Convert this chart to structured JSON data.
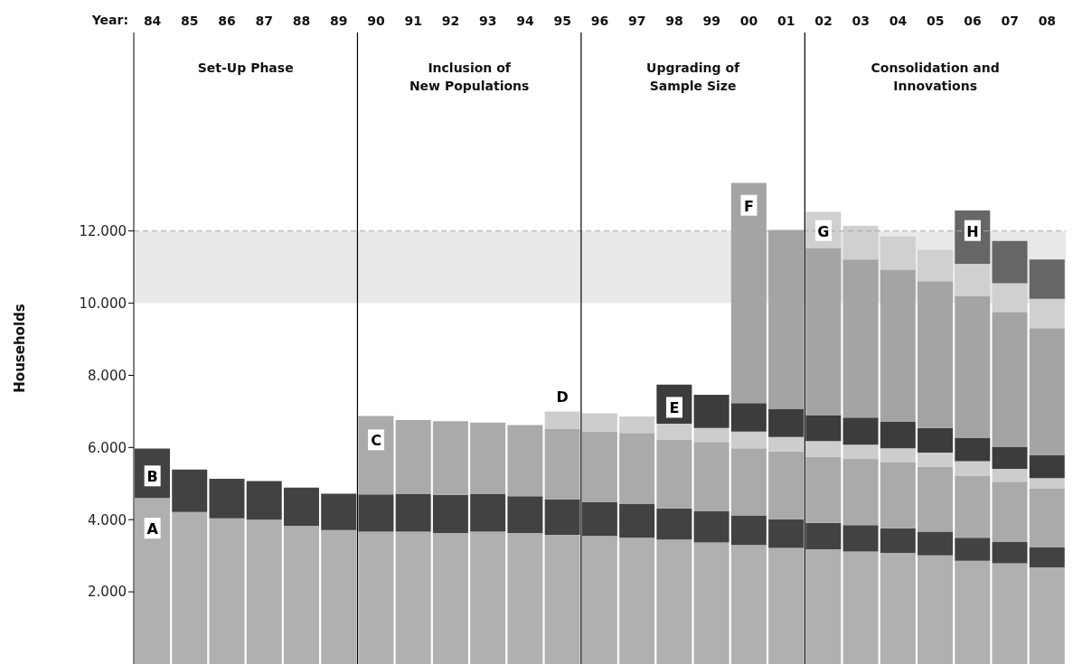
{
  "chart_data": {
    "type": "bar",
    "stacked": true,
    "xlabel": "Year:",
    "ylabel": "Households",
    "x": [
      1984,
      1985,
      1986,
      1987,
      1988,
      1989,
      1990,
      1991,
      1992,
      1993,
      1994,
      1995,
      1996,
      1997,
      1998,
      1999,
      2000,
      2001,
      2002,
      2003,
      2004,
      2005,
      2006,
      2007,
      2008
    ],
    "xlim": [
      1983.5,
      2008.5
    ],
    "xticks": [
      {
        "value": 1984,
        "label": "84"
      },
      {
        "value": 1985,
        "label": "85"
      },
      {
        "value": 1986,
        "label": "86"
      },
      {
        "value": 1987,
        "label": "87"
      },
      {
        "value": 1988,
        "label": "88"
      },
      {
        "value": 1989,
        "label": "89"
      },
      {
        "value": 1990,
        "label": "90"
      },
      {
        "value": 1991,
        "label": "91"
      },
      {
        "value": 1992,
        "label": "92"
      },
      {
        "value": 1993,
        "label": "93"
      },
      {
        "value": 1994,
        "label": "94"
      },
      {
        "value": 1995,
        "label": "95"
      },
      {
        "value": 1996,
        "label": "96"
      },
      {
        "value": 1997,
        "label": "97"
      },
      {
        "value": 1998,
        "label": "98"
      },
      {
        "value": 1999,
        "label": "99"
      },
      {
        "value": 2000,
        "label": "00"
      },
      {
        "value": 2001,
        "label": "01"
      },
      {
        "value": 2002,
        "label": "02"
      },
      {
        "value": 2003,
        "label": "03"
      },
      {
        "value": 2004,
        "label": "04"
      },
      {
        "value": 2005,
        "label": "05"
      },
      {
        "value": 2006,
        "label": "06"
      },
      {
        "value": 2007,
        "label": "07"
      },
      {
        "value": 2008,
        "label": "08"
      }
    ],
    "series": [
      {
        "color": "#b0b0b0",
        "values": [
          4600,
          4210,
          4040,
          4000,
          3830,
          3710,
          3670,
          3670,
          3630,
          3670,
          3630,
          3580,
          3550,
          3500,
          3450,
          3370,
          3300,
          3220,
          3180,
          3120,
          3080,
          3010,
          2860,
          2790,
          2680
        ]
      },
      {
        "color": "#424242",
        "values": [
          1370,
          1180,
          1090,
          1070,
          1060,
          1010,
          1030,
          1050,
          1060,
          1050,
          1020,
          980,
          930,
          930,
          860,
          860,
          820,
          790,
          730,
          730,
          680,
          660,
          640,
          590,
          550
        ]
      },
      {
        "color": "#aaaaaa",
        "values": [
          null,
          null,
          null,
          null,
          null,
          null,
          2170,
          2040,
          2040,
          1970,
          1970,
          1950,
          1960,
          1970,
          1910,
          1920,
          1860,
          1880,
          1830,
          1830,
          1820,
          1800,
          1720,
          1670,
          1630
        ]
      },
      {
        "color": "#cdcdcd",
        "values": [
          null,
          null,
          null,
          null,
          null,
          null,
          null,
          null,
          null,
          null,
          null,
          490,
          510,
          460,
          440,
          390,
          460,
          400,
          440,
          400,
          400,
          390,
          400,
          360,
          290
        ]
      },
      {
        "color": "#3c3c3c",
        "values": [
          null,
          null,
          null,
          null,
          null,
          null,
          null,
          null,
          null,
          null,
          null,
          null,
          null,
          null,
          1080,
          920,
          790,
          780,
          720,
          750,
          730,
          680,
          650,
          610,
          640
        ]
      },
      {
        "color": "#a4a4a4",
        "values": [
          null,
          null,
          null,
          null,
          null,
          null,
          null,
          null,
          null,
          null,
          null,
          null,
          null,
          null,
          null,
          null,
          6100,
          4960,
          4630,
          4380,
          4220,
          4070,
          3920,
          3740,
          3520
        ]
      },
      {
        "color": "#d0d0d0",
        "values": [
          null,
          null,
          null,
          null,
          null,
          null,
          null,
          null,
          null,
          null,
          null,
          null,
          null,
          null,
          null,
          null,
          null,
          null,
          1000,
          930,
          920,
          870,
          900,
          790,
          810
        ]
      },
      {
        "color": "#666666",
        "values": [
          null,
          null,
          null,
          null,
          null,
          null,
          null,
          null,
          null,
          null,
          null,
          null,
          null,
          null,
          null,
          null,
          null,
          null,
          null,
          null,
          null,
          null,
          1480,
          1170,
          1090
        ]
      }
    ],
    "ylim": [
      0,
      17500
    ],
    "yticks": [
      {
        "value": 2000,
        "label": "2.000"
      },
      {
        "value": 4000,
        "label": "4.000"
      },
      {
        "value": 6000,
        "label": "6.000"
      },
      {
        "value": 8000,
        "label": "8.000"
      },
      {
        "value": 10000,
        "label": "10.000"
      },
      {
        "value": 12000,
        "label": "12.000"
      }
    ],
    "bands": [
      {
        "axis": "y",
        "from": 10000,
        "to": 12000,
        "color": "#e9e9e9"
      }
    ],
    "ref_lines": [
      {
        "axis": "y",
        "value": 12000,
        "color": "#aaaaaa",
        "line_style": "dashed"
      },
      {
        "axis": "x",
        "value": 1989.5,
        "color": "#000000"
      },
      {
        "axis": "x",
        "value": 1995.5,
        "color": "#000000"
      },
      {
        "axis": "x",
        "value": 2001.5,
        "color": "#000000"
      }
    ],
    "annotations": [
      "Set-Up Phase",
      "Inclusion of New Populations",
      "Upgrading of Sample Size",
      "Consolidation and Innovations",
      {
        "text": "A",
        "x": 1984,
        "y": 3750
      },
      {
        "text": "B",
        "x": 1984,
        "y": 5200
      },
      {
        "text": "C",
        "x": 1990,
        "y": 6200
      },
      {
        "text": "D",
        "x": 1995,
        "y": 7400
      },
      {
        "text": "E",
        "x": 1998,
        "y": 7100
      },
      {
        "text": "F",
        "x": 2000,
        "y": 12700
      },
      {
        "text": "G",
        "x": 2002,
        "y": 12000
      },
      {
        "text": "H",
        "x": 2006,
        "y": 12000
      }
    ],
    "grid": false,
    "legend": false
  }
}
